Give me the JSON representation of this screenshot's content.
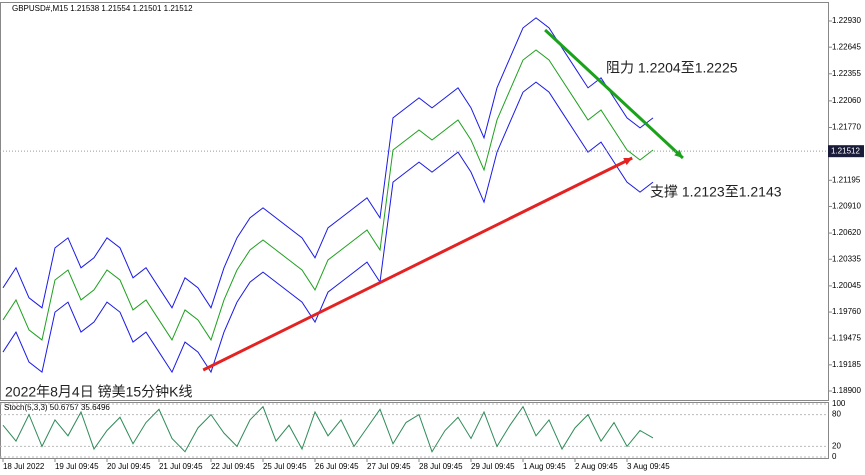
{
  "chart_data": {
    "type": "line",
    "title": "GBPUSD#,M15  1.21538 1.21554 1.21501 1.21512",
    "subtitle": "2022年8月4日 镑美15分钟K线",
    "annotations": [
      "阻力 1.2204至1.2225",
      "支撑 1.2123至1.2143"
    ],
    "last_price": 1.21512,
    "x": [
      0,
      1,
      2,
      3,
      4,
      5,
      6,
      7,
      8,
      9,
      10,
      11,
      12,
      13,
      14,
      15,
      16,
      17,
      18,
      19,
      20,
      21,
      22,
      23,
      24,
      25,
      26,
      27,
      28,
      29,
      30,
      31,
      32,
      33,
      34,
      35,
      36,
      37,
      38,
      39,
      40,
      41,
      42,
      43,
      44,
      45,
      46,
      47,
      48,
      49,
      50
    ],
    "xlim": [
      -0.23,
      63.46
    ],
    "xticks": [
      {
        "value": 0,
        "label": "18 Jul 2022"
      },
      {
        "value": 4,
        "label": "19 Jul 09:45"
      },
      {
        "value": 8,
        "label": "20 Jul 09:45"
      },
      {
        "value": 12,
        "label": "21 Jul 09:45"
      },
      {
        "value": 16,
        "label": "22 Jul 09:45"
      },
      {
        "value": 20,
        "label": "25 Jul 09:45"
      },
      {
        "value": 24,
        "label": "26 Jul 09:45"
      },
      {
        "value": 28,
        "label": "27 Jul 09:45"
      },
      {
        "value": 32,
        "label": "28 Jul 09:45"
      },
      {
        "value": 36,
        "label": "29 Jul 09:45"
      },
      {
        "value": 40,
        "label": "1 Aug 09:45"
      },
      {
        "value": 44,
        "label": "2 Aug 09:45"
      },
      {
        "value": 48,
        "label": "3 Aug 09:45"
      }
    ],
    "ylim": [
      1.18802,
      1.23126
    ],
    "yticks": [
      {
        "value": 1.2293,
        "label": "1.22930"
      },
      {
        "value": 1.22645,
        "label": "1.22645"
      },
      {
        "value": 1.22355,
        "label": "1.22355"
      },
      {
        "value": 1.2206,
        "label": "1.22060"
      },
      {
        "value": 1.2177,
        "label": "1.21770"
      },
      1.21195,
      {
        "value": 1.2091,
        "label": "1.20910"
      },
      {
        "value": 1.2062,
        "label": "1.20620"
      },
      1.20335,
      1.20045,
      {
        "value": 1.1976,
        "label": "1.19760"
      },
      1.19475,
      1.19185,
      {
        "value": 1.189,
        "label": "1.18900"
      }
    ],
    "series": [
      {
        "color": "#1fa01f",
        "values": [
          1.19674,
          1.19892,
          1.19565,
          1.19456,
          1.20109,
          1.20218,
          1.19892,
          1.20001,
          1.20218,
          1.20109,
          1.19783,
          1.19892,
          1.19674,
          1.19456,
          1.19783,
          1.19674,
          1.19456,
          1.19892,
          1.20218,
          1.20436,
          1.20545,
          1.20436,
          1.20327,
          1.20218,
          1.20001,
          1.20327,
          1.20436,
          1.20545,
          1.20654,
          1.20436,
          1.21525,
          1.21634,
          1.21743,
          1.21634,
          1.21743,
          1.21852,
          1.21634,
          1.21307,
          1.21852,
          1.22179,
          1.22505,
          1.22614,
          1.22505,
          1.22287,
          1.2207,
          1.21852,
          1.21961,
          1.21743,
          1.21525,
          1.21416,
          1.21525
        ]
      },
      {
        "color": "#1a1ae6",
        "values": [
          1.20024,
          1.20242,
          1.19915,
          1.19806,
          1.20459,
          1.20568,
          1.20242,
          1.20351,
          1.20568,
          1.20459,
          1.20133,
          1.20242,
          1.20024,
          1.19806,
          1.20133,
          1.20024,
          1.19806,
          1.20242,
          1.20568,
          1.20786,
          1.20895,
          1.20786,
          1.20677,
          1.20568,
          1.20351,
          1.20677,
          1.20786,
          1.20895,
          1.21004,
          1.20786,
          1.21875,
          1.21984,
          1.22093,
          1.21984,
          1.22093,
          1.22202,
          1.21984,
          1.21657,
          1.22202,
          1.22529,
          1.22855,
          1.22964,
          1.22855,
          1.22637,
          1.2242,
          1.22202,
          1.22311,
          1.22093,
          1.21875,
          1.21766,
          1.21875
        ]
      },
      {
        "color": "#1a1ae6",
        "values": [
          1.19324,
          1.19542,
          1.19215,
          1.19106,
          1.19759,
          1.19868,
          1.19542,
          1.19651,
          1.19868,
          1.19759,
          1.19433,
          1.19542,
          1.19324,
          1.19106,
          1.19433,
          1.19324,
          1.19106,
          1.19542,
          1.19868,
          1.20086,
          1.20195,
          1.20086,
          1.19977,
          1.19868,
          1.19651,
          1.19977,
          1.20086,
          1.20195,
          1.20304,
          1.20086,
          1.21175,
          1.21284,
          1.21393,
          1.21284,
          1.21393,
          1.21502,
          1.21284,
          1.20957,
          1.21502,
          1.21829,
          1.22155,
          1.22264,
          1.22155,
          1.21937,
          1.2172,
          1.21502,
          1.21611,
          1.21393,
          1.21175,
          1.21066,
          1.21175
        ]
      }
    ],
    "trend_lines": [
      {
        "color": "#1aa31a",
        "x": [
          41.7,
          52.3
        ],
        "values": [
          1.22832,
          1.21438
        ]
      },
      {
        "color": "#e52222",
        "x": [
          15.4,
          48.4
        ],
        "values": [
          1.19129,
          1.21438
        ]
      }
    ],
    "stoch": {
      "label": "Stoch(5,3,3) 50.6757 35.6496",
      "color": "#2e8b57",
      "ylim": [
        0,
        100
      ],
      "yticks": [
        100,
        80,
        20,
        0
      ],
      "values": [
        60,
        30,
        80,
        20,
        70,
        40,
        85,
        15,
        50,
        75,
        25,
        65,
        90,
        35,
        10,
        55,
        80,
        45,
        20,
        70,
        95,
        30,
        60,
        15,
        85,
        40,
        70,
        20,
        55,
        90,
        25,
        65,
        80,
        10,
        50,
        75,
        35,
        85,
        20,
        60,
        95,
        40,
        70,
        15,
        55,
        80,
        30,
        65,
        20,
        50,
        36
      ]
    }
  }
}
